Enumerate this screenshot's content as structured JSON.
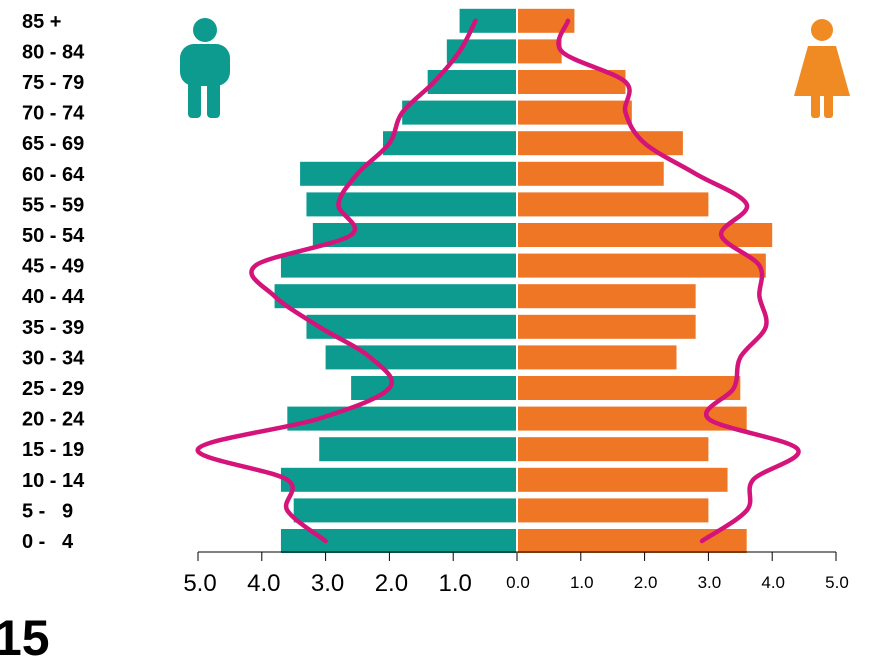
{
  "colors": {
    "male_bar": "#0d9a8f",
    "female_bar": "#ee7624",
    "curve": "#d4147a",
    "male_icon": "#0d9a8f",
    "female_icon": "#f08a22"
  },
  "icons": {
    "male": "male-person-icon",
    "female": "female-person-icon"
  },
  "bottom_text": "15",
  "chart_data": {
    "type": "bar",
    "orientation": "horizontal-population-pyramid",
    "categories": [
      "0 -   4",
      "5 -   9",
      "10 - 14",
      "15 - 19",
      "20 - 24",
      "25 - 29",
      "30 - 34",
      "35 - 39",
      "40 - 44",
      "45 - 49",
      "50 - 54",
      "55 - 59",
      "60 - 64",
      "65 - 69",
      "70 - 74",
      "75 - 79",
      "80 - 84",
      "85 +"
    ],
    "series": [
      {
        "side": "left",
        "values": [
          3.7,
          3.5,
          3.7,
          3.1,
          3.6,
          2.6,
          3.0,
          3.3,
          3.8,
          3.7,
          3.2,
          3.3,
          3.4,
          2.1,
          1.8,
          1.4,
          1.1,
          0.9
        ]
      },
      {
        "side": "right",
        "values": [
          3.6,
          3.0,
          3.3,
          3.0,
          3.6,
          3.5,
          2.5,
          2.8,
          2.8,
          3.9,
          4.0,
          3.0,
          2.3,
          2.6,
          1.8,
          1.7,
          0.7,
          0.9
        ]
      }
    ],
    "overlay_lines": [
      {
        "side": "left",
        "values": [
          3.0,
          3.6,
          3.6,
          5.0,
          3.1,
          2.0,
          2.3,
          3.1,
          3.8,
          4.1,
          2.6,
          2.8,
          2.5,
          2.0,
          1.8,
          1.3,
          0.9,
          0.65
        ]
      },
      {
        "side": "right",
        "values": [
          2.9,
          3.6,
          3.7,
          4.4,
          3.0,
          3.4,
          3.5,
          3.9,
          3.8,
          3.8,
          3.2,
          3.6,
          2.8,
          2.0,
          1.7,
          1.7,
          0.7,
          0.8
        ]
      }
    ],
    "x_ticks_left": [
      "5.0",
      "4.0",
      "3.0",
      "2.0",
      "1.0"
    ],
    "x_ticks_right": [
      "0.0",
      "1.0",
      "2.0",
      "3.0",
      "4.0",
      "5.0"
    ],
    "xlim": [
      0,
      5
    ],
    "title": "",
    "xlabel": "",
    "ylabel": ""
  }
}
